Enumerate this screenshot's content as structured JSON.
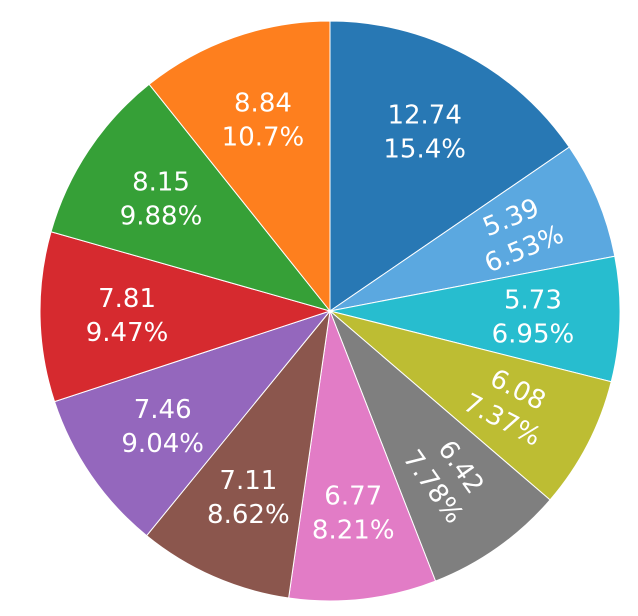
{
  "chart_data": {
    "type": "pie",
    "title": "",
    "direction": "clockwise",
    "start_angle": "12 o'clock",
    "legend": "none",
    "slices": [
      {
        "value": 12.74,
        "value_label": "12.74",
        "percent_label": "15.4%",
        "color": "#2878b4",
        "label_orientation": "horizontal"
      },
      {
        "value": 5.39,
        "value_label": "5.39",
        "percent_label": "6.53%",
        "color": "#5ba8e0",
        "label_orientation": "radial"
      },
      {
        "value": 5.73,
        "value_label": "5.73",
        "percent_label": "6.95%",
        "color": "#27bdcf",
        "label_orientation": "horizontal"
      },
      {
        "value": 6.08,
        "value_label": "6.08",
        "percent_label": "7.37%",
        "color": "#bdbd33",
        "label_orientation": "radial"
      },
      {
        "value": 6.42,
        "value_label": "6.42",
        "percent_label": "7.78%",
        "color": "#7f7f7f",
        "label_orientation": "radial"
      },
      {
        "value": 6.77,
        "value_label": "6.77",
        "percent_label": "8.21%",
        "color": "#e27cc6",
        "label_orientation": "horizontal"
      },
      {
        "value": 7.11,
        "value_label": "7.11",
        "percent_label": "8.62%",
        "color": "#8b564d",
        "label_orientation": "horizontal"
      },
      {
        "value": 7.46,
        "value_label": "7.46",
        "percent_label": "9.04%",
        "color": "#9467bd",
        "label_orientation": "horizontal"
      },
      {
        "value": 7.81,
        "value_label": "7.81",
        "percent_label": "9.47%",
        "color": "#d62a2f",
        "label_orientation": "horizontal"
      },
      {
        "value": 8.15,
        "value_label": "8.15",
        "percent_label": "9.88%",
        "color": "#36a037",
        "label_orientation": "horizontal"
      },
      {
        "value": 8.84,
        "value_label": "8.84",
        "percent_label": "10.7%",
        "color": "#fe7f1e",
        "label_orientation": "horizontal"
      }
    ]
  }
}
